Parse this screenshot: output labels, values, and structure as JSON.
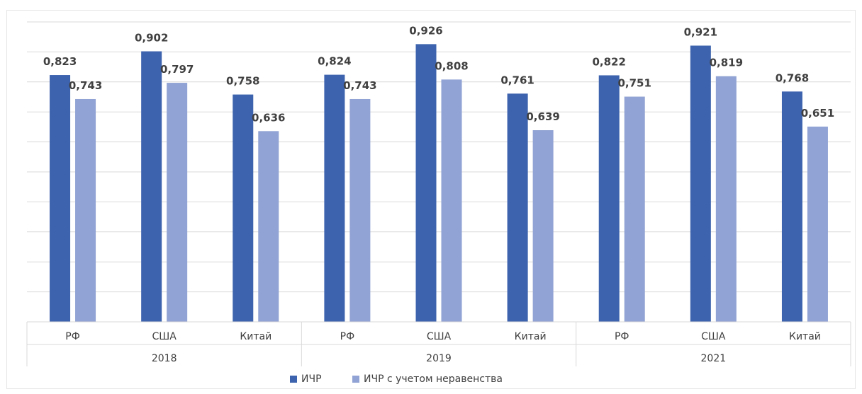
{
  "chart_data": {
    "type": "bar",
    "title": "",
    "xlabel": "",
    "ylabel": "",
    "ylim": [
      0,
      1
    ],
    "grid": true,
    "legend_position": "bottom",
    "groups": [
      {
        "label": "2018",
        "categories": [
          "РФ",
          "США",
          "Китай"
        ]
      },
      {
        "label": "2019",
        "categories": [
          "РФ",
          "США",
          "Китай"
        ]
      },
      {
        "label": "2021",
        "categories": [
          "РФ",
          "США",
          "Китай"
        ]
      }
    ],
    "series": [
      {
        "name": "ИЧР",
        "color": "#3d63ae",
        "values": [
          0.823,
          0.902,
          0.758,
          0.824,
          0.926,
          0.761,
          0.822,
          0.921,
          0.768
        ],
        "labels": [
          "0,823",
          "0,902",
          "0,758",
          "0,824",
          "0,926",
          "0,761",
          "0,822",
          "0,921",
          "0,768"
        ]
      },
      {
        "name": "ИЧР с учетом неравенства",
        "color": "#91a3d4",
        "values": [
          0.743,
          0.797,
          0.636,
          0.743,
          0.808,
          0.639,
          0.751,
          0.819,
          0.651
        ],
        "labels": [
          "0,743",
          "0,797",
          "0,636",
          "0,743",
          "0,808",
          "0,639",
          "0,751",
          "0,819",
          "0,651"
        ]
      }
    ]
  }
}
